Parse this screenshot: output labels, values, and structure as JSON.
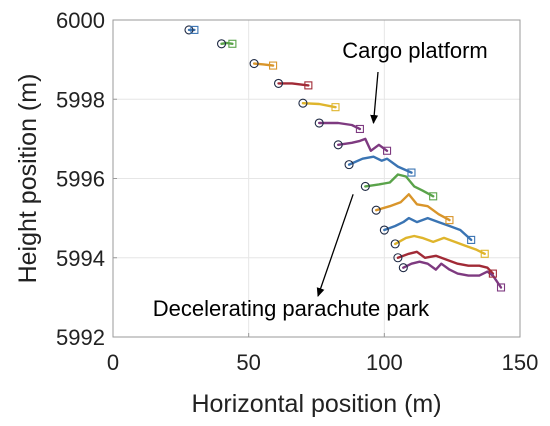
{
  "chart_data": {
    "type": "line",
    "title": "",
    "xlabel": "Horizontal position (m)",
    "ylabel": "Height position (m)",
    "xlim": [
      0,
      150
    ],
    "ylim": [
      5992,
      6000
    ],
    "xticks": [
      0,
      50,
      100,
      150
    ],
    "yticks": [
      5992,
      5994,
      5996,
      5998,
      6000
    ],
    "grid": true,
    "legend": "none",
    "annotations": [
      {
        "text": "Cargo platform",
        "arrow_to": {
          "x": 96,
          "y": 5997.4
        }
      },
      {
        "text": "Decelerating parachute park",
        "arrow_to": {
          "x": 88.5,
          "y": 5995.6
        }
      }
    ],
    "colors": {
      "blue": "#3a74b3",
      "orange": "#d9952a",
      "yellow": "#dfb52c",
      "purple": "#7e3a80",
      "green": "#5aa34a",
      "lightblue": "#4aa0d0",
      "darkred": "#a12a36"
    },
    "series": [
      {
        "color": "#3a74b3",
        "start": [
          28,
          5999.75
        ],
        "end": [
          30,
          5999.75
        ],
        "points": [
          [
            28,
            5999.75
          ],
          [
            30,
            5999.75
          ]
        ]
      },
      {
        "color": "#5aa34a",
        "start": [
          40,
          5999.4
        ],
        "end": [
          44,
          5999.4
        ],
        "points": [
          [
            40,
            5999.4
          ],
          [
            42,
            5999.42
          ],
          [
            44,
            5999.4
          ]
        ]
      },
      {
        "color": "#d9952a",
        "start": [
          52,
          5998.9
        ],
        "end": [
          59,
          5998.85
        ],
        "points": [
          [
            52,
            5998.9
          ],
          [
            55.5,
            5998.88
          ],
          [
            59,
            5998.85
          ]
        ]
      },
      {
        "color": "#a12a36",
        "start": [
          61,
          5998.4
        ],
        "end": [
          72,
          5998.35
        ],
        "points": [
          [
            61,
            5998.4
          ],
          [
            66,
            5998.4
          ],
          [
            72,
            5998.35
          ]
        ]
      },
      {
        "color": "#dfb52c",
        "start": [
          70,
          5997.9
        ],
        "end": [
          82,
          5997.8
        ],
        "points": [
          [
            70,
            5997.9
          ],
          [
            76,
            5997.88
          ],
          [
            82,
            5997.8
          ]
        ]
      },
      {
        "color": "#7e3a80",
        "start": [
          76,
          5997.4
        ],
        "end": [
          91,
          5997.25
        ],
        "points": [
          [
            76,
            5997.4
          ],
          [
            83,
            5997.4
          ],
          [
            88,
            5997.35
          ],
          [
            91,
            5997.25
          ]
        ]
      },
      {
        "color": "#7e3a80",
        "start": [
          83,
          5996.85
        ],
        "end": [
          101,
          5996.7
        ],
        "points": [
          [
            83,
            5996.85
          ],
          [
            88,
            5996.9
          ],
          [
            91,
            5996.95
          ],
          [
            93,
            5997.0
          ],
          [
            95,
            5996.7
          ],
          [
            98,
            5996.85
          ],
          [
            101,
            5996.7
          ]
        ]
      },
      {
        "color": "#3a74b3",
        "start": [
          87,
          5996.35
        ],
        "end": [
          110,
          5996.15
        ],
        "points": [
          [
            87,
            5996.35
          ],
          [
            92,
            5996.5
          ],
          [
            96,
            5996.55
          ],
          [
            99,
            5996.45
          ],
          [
            101,
            5996.5
          ],
          [
            105,
            5996.3
          ],
          [
            110,
            5996.15
          ]
        ]
      },
      {
        "color": "#5aa34a",
        "start": [
          93,
          5995.8
        ],
        "end": [
          118,
          5995.55
        ],
        "points": [
          [
            93,
            5995.8
          ],
          [
            98,
            5995.85
          ],
          [
            102,
            5995.9
          ],
          [
            105,
            5996.1
          ],
          [
            108,
            5996.05
          ],
          [
            111,
            5995.8
          ],
          [
            114,
            5995.7
          ],
          [
            118,
            5995.55
          ]
        ]
      },
      {
        "color": "#d9952a",
        "start": [
          97,
          5995.2
        ],
        "end": [
          124,
          5994.95
        ],
        "points": [
          [
            97,
            5995.2
          ],
          [
            102,
            5995.3
          ],
          [
            106,
            5995.4
          ],
          [
            109,
            5995.6
          ],
          [
            112,
            5995.35
          ],
          [
            116,
            5995.3
          ],
          [
            120,
            5995.1
          ],
          [
            124,
            5994.95
          ]
        ]
      },
      {
        "color": "#3a74b3",
        "start": [
          100,
          5994.7
        ],
        "end": [
          132,
          5994.45
        ],
        "points": [
          [
            100,
            5994.7
          ],
          [
            104,
            5994.8
          ],
          [
            107,
            5994.9
          ],
          [
            109,
            5995.0
          ],
          [
            112,
            5994.9
          ],
          [
            116,
            5995.0
          ],
          [
            120,
            5994.9
          ],
          [
            124,
            5994.8
          ],
          [
            128,
            5994.7
          ],
          [
            132,
            5994.45
          ]
        ]
      },
      {
        "color": "#dfb52c",
        "start": [
          104,
          5994.35
        ],
        "end": [
          137,
          5994.1
        ],
        "points": [
          [
            104,
            5994.35
          ],
          [
            108,
            5994.5
          ],
          [
            111,
            5994.55
          ],
          [
            114,
            5994.5
          ],
          [
            118,
            5994.4
          ],
          [
            122,
            5994.5
          ],
          [
            126,
            5994.4
          ],
          [
            130,
            5994.3
          ],
          [
            134,
            5994.2
          ],
          [
            137,
            5994.1
          ]
        ]
      },
      {
        "color": "#a12a36",
        "start": [
          105,
          5994.0
        ],
        "end": [
          140,
          5993.6
        ],
        "points": [
          [
            105,
            5994.0
          ],
          [
            109,
            5994.1
          ],
          [
            112,
            5994.15
          ],
          [
            115,
            5994.0
          ],
          [
            119,
            5994.05
          ],
          [
            123,
            5993.95
          ],
          [
            127,
            5993.85
          ],
          [
            131,
            5993.8
          ],
          [
            135,
            5993.8
          ],
          [
            138,
            5993.75
          ],
          [
            140,
            5993.6
          ]
        ]
      },
      {
        "color": "#7e3a80",
        "start": [
          107,
          5993.75
        ],
        "end": [
          143,
          5993.25
        ],
        "points": [
          [
            107,
            5993.75
          ],
          [
            110,
            5993.85
          ],
          [
            113,
            5993.9
          ],
          [
            116,
            5993.85
          ],
          [
            119,
            5993.7
          ],
          [
            121,
            5993.85
          ],
          [
            124,
            5993.7
          ],
          [
            127,
            5993.6
          ],
          [
            131,
            5993.55
          ],
          [
            135,
            5993.55
          ],
          [
            138,
            5993.65
          ],
          [
            140,
            5993.55
          ],
          [
            143,
            5993.25
          ]
        ]
      }
    ]
  }
}
